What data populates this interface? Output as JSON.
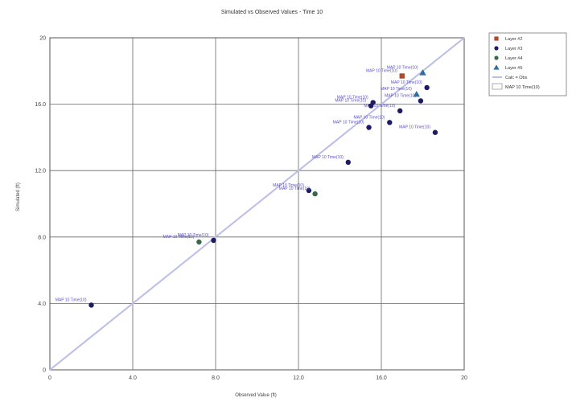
{
  "chart_data": {
    "type": "scatter",
    "title": "Simulated vs Observed Values - Time 10",
    "xlabel": "Observed Value (ft)",
    "ylabel": "Simulated (ft)",
    "xlim": [
      0,
      20
    ],
    "ylim": [
      0,
      20
    ],
    "xticks": [
      0,
      4,
      8,
      12,
      16,
      20
    ],
    "yticks": [
      0,
      4,
      8,
      12,
      16,
      20
    ],
    "xtick_labels": [
      "0",
      "4.0",
      "8.0",
      "12.0",
      "16.0",
      "20"
    ],
    "ytick_labels": [
      "0",
      "4.0",
      "8.0",
      "12.0",
      "16.0",
      "20"
    ],
    "grid": true,
    "legend_position": "top-right",
    "series": [
      {
        "name": "Layer #2",
        "color": "#b04a2f",
        "marker": "square",
        "points": [
          {
            "x": 17.0,
            "y": 17.7,
            "label": "MAP 10 Time(10)"
          }
        ]
      },
      {
        "name": "Layer #3",
        "color": "#1e1a66",
        "marker": "circle",
        "points": [
          {
            "x": 2.0,
            "y": 3.9,
            "label": "MAP 10 Time(10)"
          },
          {
            "x": 7.9,
            "y": 7.8,
            "label": "MAP 10 Time(10)"
          },
          {
            "x": 12.5,
            "y": 10.8,
            "label": "MAP 10 Time(10)"
          },
          {
            "x": 14.4,
            "y": 12.5,
            "label": "MAP 10 Time(10)"
          },
          {
            "x": 15.4,
            "y": 14.6,
            "label": "MAP 10 Time(10)"
          },
          {
            "x": 15.6,
            "y": 16.1,
            "label": "MAP 10 Time(10)"
          },
          {
            "x": 16.9,
            "y": 15.6,
            "label": "MAP 10 Time(10)"
          },
          {
            "x": 15.5,
            "y": 15.9,
            "label": "MAP 10 Time(10)"
          },
          {
            "x": 16.4,
            "y": 14.9,
            "label": "MAP 10 Time(10)"
          },
          {
            "x": 17.9,
            "y": 16.2,
            "label": "MAP 10 Time(10)"
          },
          {
            "x": 18.2,
            "y": 17.0,
            "label": "MAP 10 Time(10)"
          },
          {
            "x": 18.6,
            "y": 14.3,
            "label": "MAP 10 Time(10)"
          }
        ]
      },
      {
        "name": "Layer #4",
        "color": "#3a6a4a",
        "marker": "circle",
        "points": [
          {
            "x": 7.2,
            "y": 7.7,
            "label": "MAP 10 Time(10)"
          },
          {
            "x": 12.8,
            "y": 10.6,
            "label": "MAP 10 Time(10)"
          }
        ]
      },
      {
        "name": "Layer #5",
        "color": "#2f6f9f",
        "marker": "triangle",
        "points": [
          {
            "x": 18.0,
            "y": 17.9,
            "label": "MAP 10 Time(10)"
          },
          {
            "x": 17.7,
            "y": 16.6,
            "label": "MAP 10 Time(10)"
          }
        ]
      }
    ],
    "reference_lines": [
      {
        "name": "Calc = Obs",
        "color": "#b9bde8",
        "from": [
          0,
          0
        ],
        "to": [
          20,
          20
        ]
      }
    ],
    "legend_extra": [
      "MAP 10 Time(10)"
    ]
  }
}
